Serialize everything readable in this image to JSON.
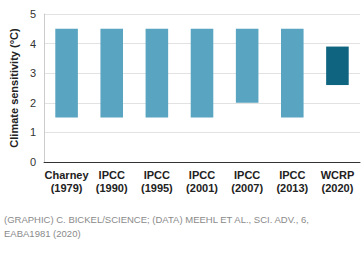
{
  "chart_data": {
    "type": "range_bar",
    "y_label": "Climate sensitivity (°C)",
    "categories": [
      "Charney\n(1979)",
      "IPCC\n(1990)",
      "IPCC\n(1995)",
      "IPCC\n(2001)",
      "IPCC\n(2007)",
      "IPCC\n(2013)",
      "WCRP\n(2020)"
    ],
    "values": [
      [
        1.5,
        4.5
      ],
      [
        1.5,
        4.5
      ],
      [
        1.5,
        4.5
      ],
      [
        1.5,
        4.5
      ],
      [
        2,
        4.5
      ],
      [
        1.5,
        4.5
      ],
      [
        2.6,
        3.9
      ]
    ],
    "colors": [
      "#58a4c1",
      "#58a4c1",
      "#58a4c1",
      "#58a4c1",
      "#58a4c1",
      "#58a4c1",
      "#0f6580"
    ],
    "ylim": [
      0,
      5
    ],
    "yticks": [
      0,
      1,
      2,
      3,
      4,
      5
    ],
    "grid": true,
    "source": "(GRAPHIC) C. BICKEL/SCIENCE; (DATA) MEEHL ET AL., SCI. ADV., 6,\nEABA1981 (2020)"
  }
}
